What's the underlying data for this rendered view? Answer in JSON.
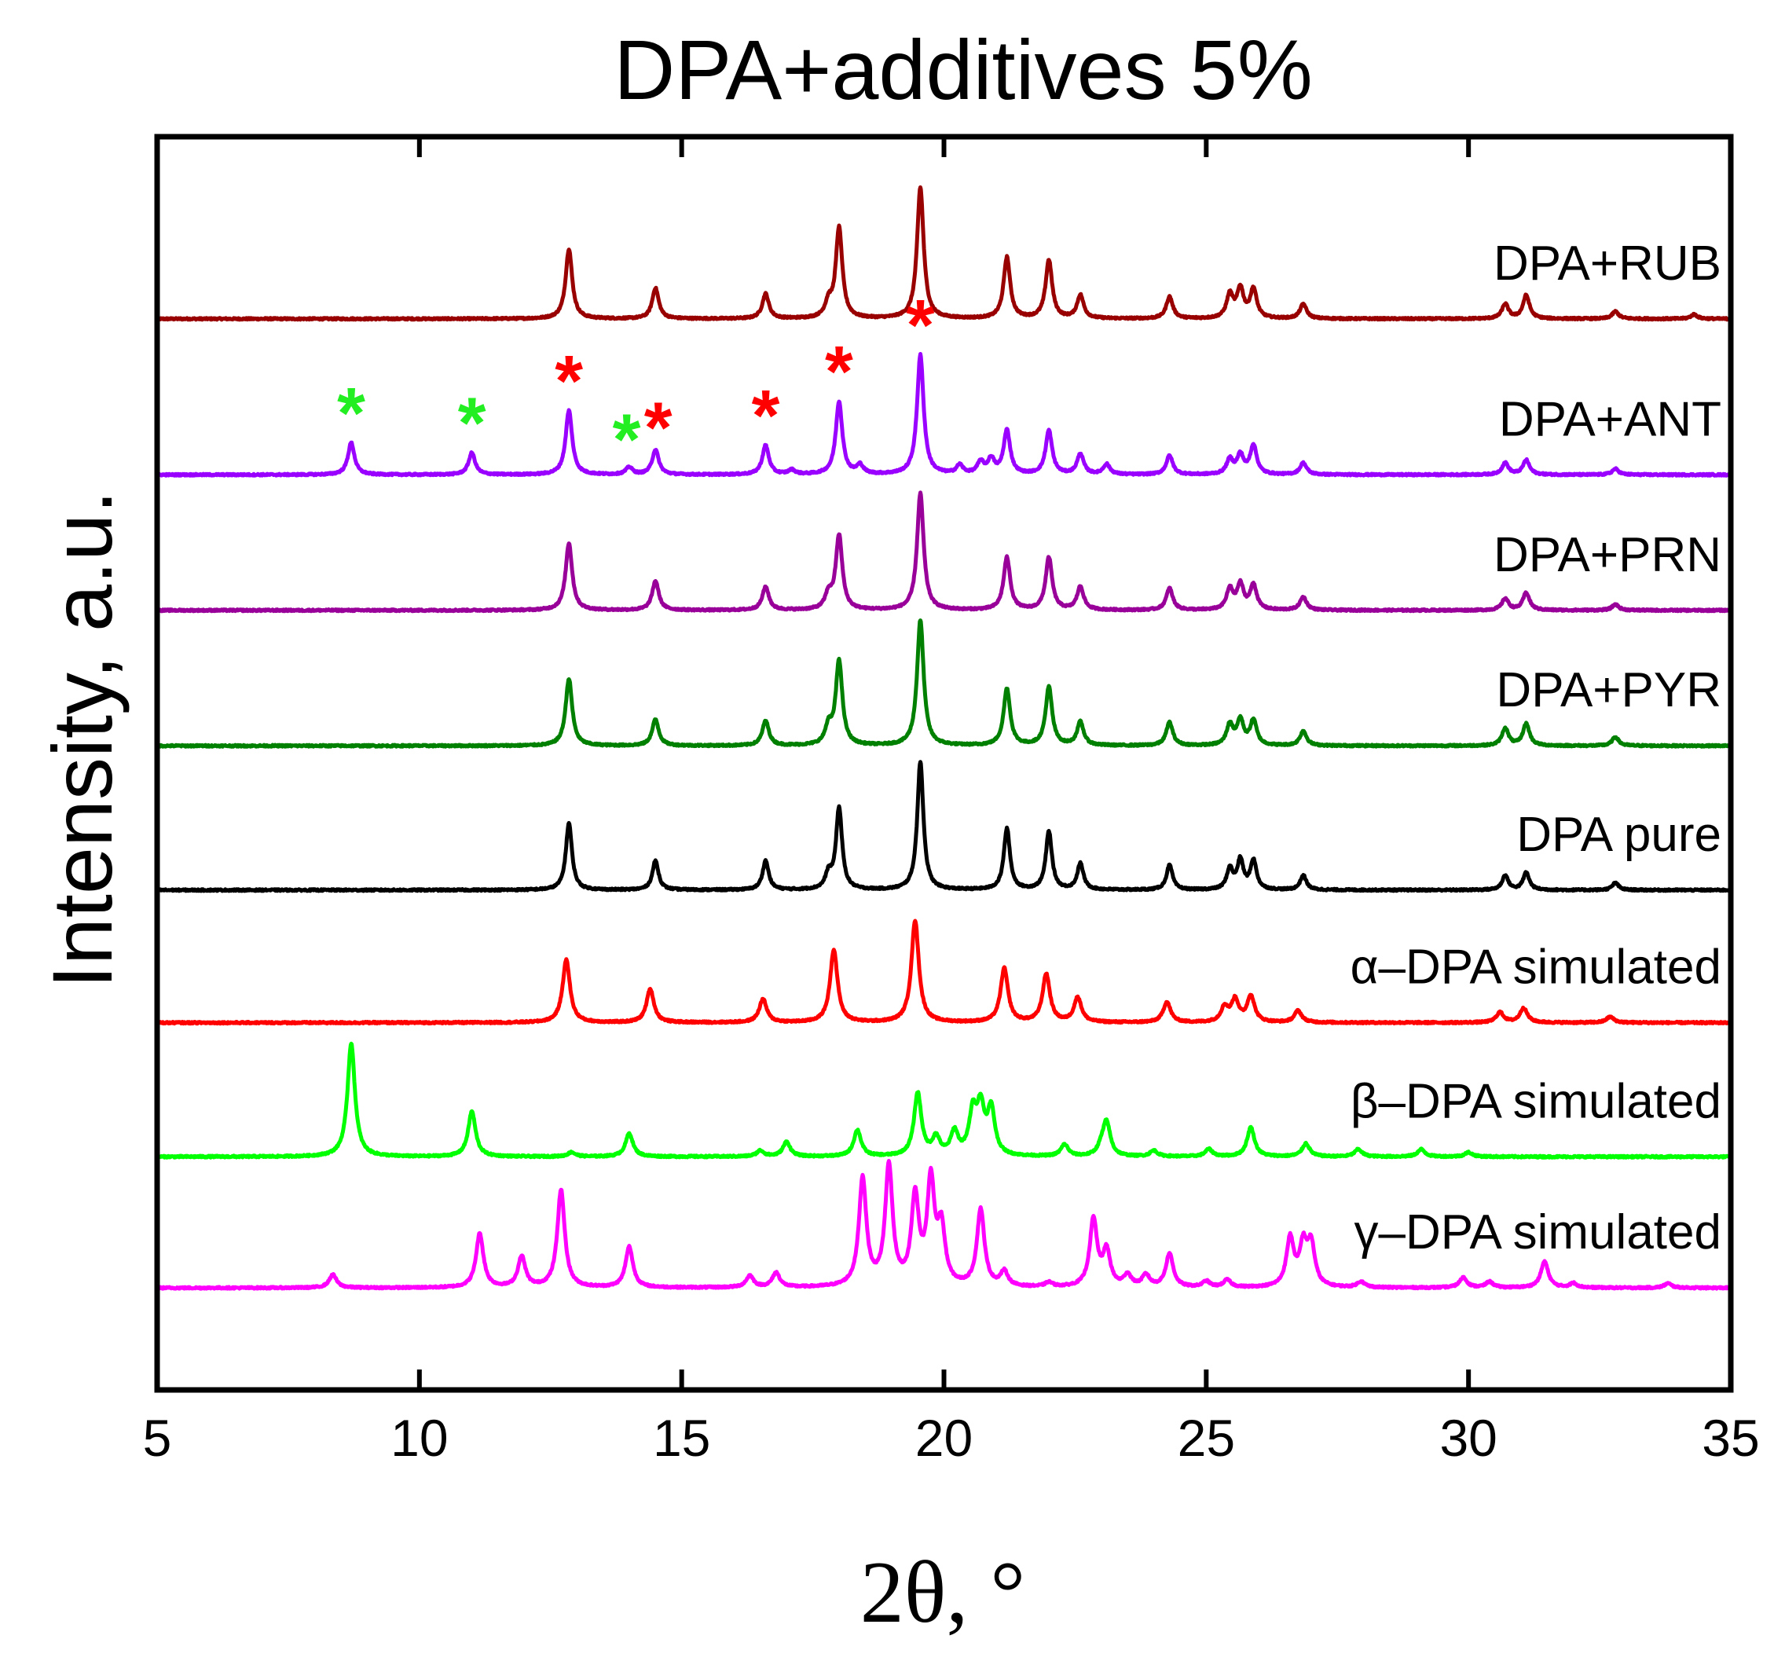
{
  "chart_data": {
    "type": "line",
    "title": "DPA+additives 5%",
    "xlabel": "2θ, °",
    "ylabel": "Intensity, a.u.",
    "xlim": [
      5,
      35
    ],
    "xticks": [
      "5",
      "10",
      "15",
      "20",
      "25",
      "30",
      "35"
    ],
    "xtick_values": [
      5,
      10,
      15,
      20,
      25,
      30,
      35
    ],
    "ylim": [
      0,
      8.6
    ],
    "legend": "labels placed at right end of each trace",
    "series": [
      {
        "name": "DPA+RUB",
        "color": "#990000",
        "offset": 7.35,
        "peak_width": 0.075,
        "peaks": [
          [
            12.85,
            0.48
          ],
          [
            14.5,
            0.21
          ],
          [
            16.6,
            0.17
          ],
          [
            17.8,
            0.1
          ],
          [
            18.0,
            0.62
          ],
          [
            19.55,
            0.9
          ],
          [
            21.2,
            0.42
          ],
          [
            22.0,
            0.4
          ],
          [
            22.6,
            0.16
          ],
          [
            24.3,
            0.15
          ],
          [
            25.45,
            0.16
          ],
          [
            25.65,
            0.2
          ],
          [
            25.9,
            0.2
          ],
          [
            26.85,
            0.1
          ],
          [
            30.7,
            0.1
          ],
          [
            31.1,
            0.16
          ],
          [
            32.8,
            0.05
          ],
          [
            34.3,
            0.03
          ]
        ]
      },
      {
        "name": "DPA+ANT",
        "color": "#9900ff",
        "offset": 6.28,
        "peak_width": 0.075,
        "peaks": [
          [
            8.7,
            0.22
          ],
          [
            11.0,
            0.15
          ],
          [
            12.85,
            0.44
          ],
          [
            14.0,
            0.05
          ],
          [
            14.5,
            0.17
          ],
          [
            16.6,
            0.2
          ],
          [
            17.1,
            0.03
          ],
          [
            18.0,
            0.5
          ],
          [
            18.4,
            0.06
          ],
          [
            19.55,
            0.82
          ],
          [
            20.3,
            0.06
          ],
          [
            20.7,
            0.08
          ],
          [
            20.9,
            0.1
          ],
          [
            21.2,
            0.3
          ],
          [
            22.0,
            0.3
          ],
          [
            22.6,
            0.14
          ],
          [
            23.1,
            0.07
          ],
          [
            24.3,
            0.13
          ],
          [
            25.45,
            0.1
          ],
          [
            25.65,
            0.13
          ],
          [
            25.9,
            0.2
          ],
          [
            26.85,
            0.08
          ],
          [
            30.7,
            0.08
          ],
          [
            31.1,
            0.1
          ],
          [
            32.8,
            0.04
          ]
        ]
      },
      {
        "name": "DPA+PRN",
        "color": "#990099",
        "offset": 5.35,
        "peak_width": 0.075,
        "peaks": [
          [
            12.85,
            0.46
          ],
          [
            14.5,
            0.2
          ],
          [
            16.6,
            0.16
          ],
          [
            17.8,
            0.1
          ],
          [
            18.0,
            0.51
          ],
          [
            19.55,
            0.8
          ],
          [
            21.2,
            0.36
          ],
          [
            22.0,
            0.36
          ],
          [
            22.6,
            0.16
          ],
          [
            24.3,
            0.15
          ],
          [
            25.45,
            0.14
          ],
          [
            25.65,
            0.17
          ],
          [
            25.9,
            0.17
          ],
          [
            26.85,
            0.09
          ],
          [
            30.7,
            0.08
          ],
          [
            31.1,
            0.12
          ],
          [
            32.8,
            0.04
          ]
        ]
      },
      {
        "name": "DPA+PYR",
        "color": "#008000",
        "offset": 4.42,
        "peak_width": 0.075,
        "peaks": [
          [
            12.85,
            0.46
          ],
          [
            14.5,
            0.18
          ],
          [
            16.6,
            0.17
          ],
          [
            17.8,
            0.12
          ],
          [
            18.0,
            0.58
          ],
          [
            19.55,
            0.86
          ],
          [
            21.2,
            0.39
          ],
          [
            22.0,
            0.4
          ],
          [
            22.6,
            0.16
          ],
          [
            24.3,
            0.16
          ],
          [
            25.45,
            0.14
          ],
          [
            25.65,
            0.17
          ],
          [
            25.9,
            0.17
          ],
          [
            26.85,
            0.1
          ],
          [
            30.7,
            0.12
          ],
          [
            31.1,
            0.15
          ],
          [
            32.8,
            0.06
          ]
        ]
      },
      {
        "name": "DPA pure",
        "color": "#000000",
        "offset": 3.43,
        "peak_width": 0.07,
        "peaks": [
          [
            12.85,
            0.46
          ],
          [
            14.5,
            0.2
          ],
          [
            16.6,
            0.2
          ],
          [
            17.8,
            0.1
          ],
          [
            18.0,
            0.56
          ],
          [
            19.55,
            0.88
          ],
          [
            21.2,
            0.42
          ],
          [
            22.0,
            0.4
          ],
          [
            22.6,
            0.18
          ],
          [
            24.3,
            0.17
          ],
          [
            25.45,
            0.14
          ],
          [
            25.65,
            0.2
          ],
          [
            25.9,
            0.2
          ],
          [
            26.85,
            0.1
          ],
          [
            30.7,
            0.1
          ],
          [
            31.1,
            0.12
          ],
          [
            32.8,
            0.05
          ]
        ]
      },
      {
        "name": "α–DPA simulated",
        "color": "#ff0000",
        "offset": 2.52,
        "peak_width": 0.085,
        "peaks": [
          [
            12.8,
            0.43
          ],
          [
            14.4,
            0.23
          ],
          [
            16.55,
            0.16
          ],
          [
            17.9,
            0.5
          ],
          [
            19.45,
            0.7
          ],
          [
            21.15,
            0.37
          ],
          [
            21.95,
            0.33
          ],
          [
            22.55,
            0.17
          ],
          [
            24.25,
            0.14
          ],
          [
            25.35,
            0.1
          ],
          [
            25.55,
            0.15
          ],
          [
            25.85,
            0.18
          ],
          [
            26.75,
            0.08
          ],
          [
            30.6,
            0.07
          ],
          [
            31.05,
            0.1
          ],
          [
            32.7,
            0.04
          ]
        ]
      },
      {
        "name": "β–DPA simulated",
        "color": "#00ff00",
        "offset": 1.6,
        "peak_width": 0.085,
        "peaks": [
          [
            8.7,
            0.78
          ],
          [
            11.0,
            0.31
          ],
          [
            12.9,
            0.03
          ],
          [
            14.0,
            0.16
          ],
          [
            16.5,
            0.04
          ],
          [
            17.0,
            0.1
          ],
          [
            18.35,
            0.18
          ],
          [
            19.5,
            0.43
          ],
          [
            19.85,
            0.12
          ],
          [
            20.2,
            0.16
          ],
          [
            20.55,
            0.28
          ],
          [
            20.7,
            0.31
          ],
          [
            20.9,
            0.31
          ],
          [
            22.3,
            0.08
          ],
          [
            23.1,
            0.23
          ],
          [
            23.0,
            0.05
          ],
          [
            24.0,
            0.04
          ],
          [
            25.05,
            0.05
          ],
          [
            25.85,
            0.2
          ],
          [
            26.9,
            0.09
          ],
          [
            27.9,
            0.05
          ],
          [
            29.1,
            0.05
          ],
          [
            30.0,
            0.03
          ]
        ]
      },
      {
        "name": "γ–DPA simulated",
        "color": "#ff00ff",
        "offset": 0.7,
        "peak_width": 0.085,
        "peaks": [
          [
            8.35,
            0.09
          ],
          [
            11.15,
            0.37
          ],
          [
            11.95,
            0.21
          ],
          [
            12.7,
            0.67
          ],
          [
            14.0,
            0.28
          ],
          [
            16.3,
            0.08
          ],
          [
            16.8,
            0.1
          ],
          [
            18.45,
            0.74
          ],
          [
            18.95,
            0.82
          ],
          [
            19.45,
            0.6
          ],
          [
            19.75,
            0.7
          ],
          [
            19.95,
            0.38
          ],
          [
            20.7,
            0.53
          ],
          [
            21.15,
            0.1
          ],
          [
            22.0,
            0.03
          ],
          [
            22.85,
            0.46
          ],
          [
            23.1,
            0.24
          ],
          [
            23.5,
            0.08
          ],
          [
            23.85,
            0.08
          ],
          [
            24.3,
            0.23
          ],
          [
            25.0,
            0.04
          ],
          [
            25.4,
            0.05
          ],
          [
            26.6,
            0.33
          ],
          [
            26.85,
            0.27
          ],
          [
            27.0,
            0.28
          ],
          [
            27.95,
            0.04
          ],
          [
            29.9,
            0.07
          ],
          [
            30.4,
            0.04
          ],
          [
            31.45,
            0.18
          ],
          [
            32.0,
            0.03
          ],
          [
            33.8,
            0.03
          ]
        ]
      }
    ],
    "annotations": [
      {
        "series": "DPA+ANT",
        "x": 8.7,
        "symbol": "*",
        "color": "#22ee22"
      },
      {
        "series": "DPA+ANT",
        "x": 11.0,
        "symbol": "*",
        "color": "#22ee22"
      },
      {
        "series": "DPA+ANT",
        "x": 13.95,
        "symbol": "*",
        "color": "#22ee22"
      },
      {
        "series": "DPA+ANT",
        "x": 12.85,
        "symbol": "*",
        "color": "#ff0000"
      },
      {
        "series": "DPA+ANT",
        "x": 14.55,
        "symbol": "*",
        "color": "#ff0000"
      },
      {
        "series": "DPA+ANT",
        "x": 16.6,
        "symbol": "*",
        "color": "#ff0000"
      },
      {
        "series": "DPA+ANT",
        "x": 18.0,
        "symbol": "*",
        "color": "#ff0000"
      },
      {
        "series": "DPA+ANT",
        "x": 19.55,
        "symbol": "*",
        "color": "#ff0000"
      }
    ]
  }
}
